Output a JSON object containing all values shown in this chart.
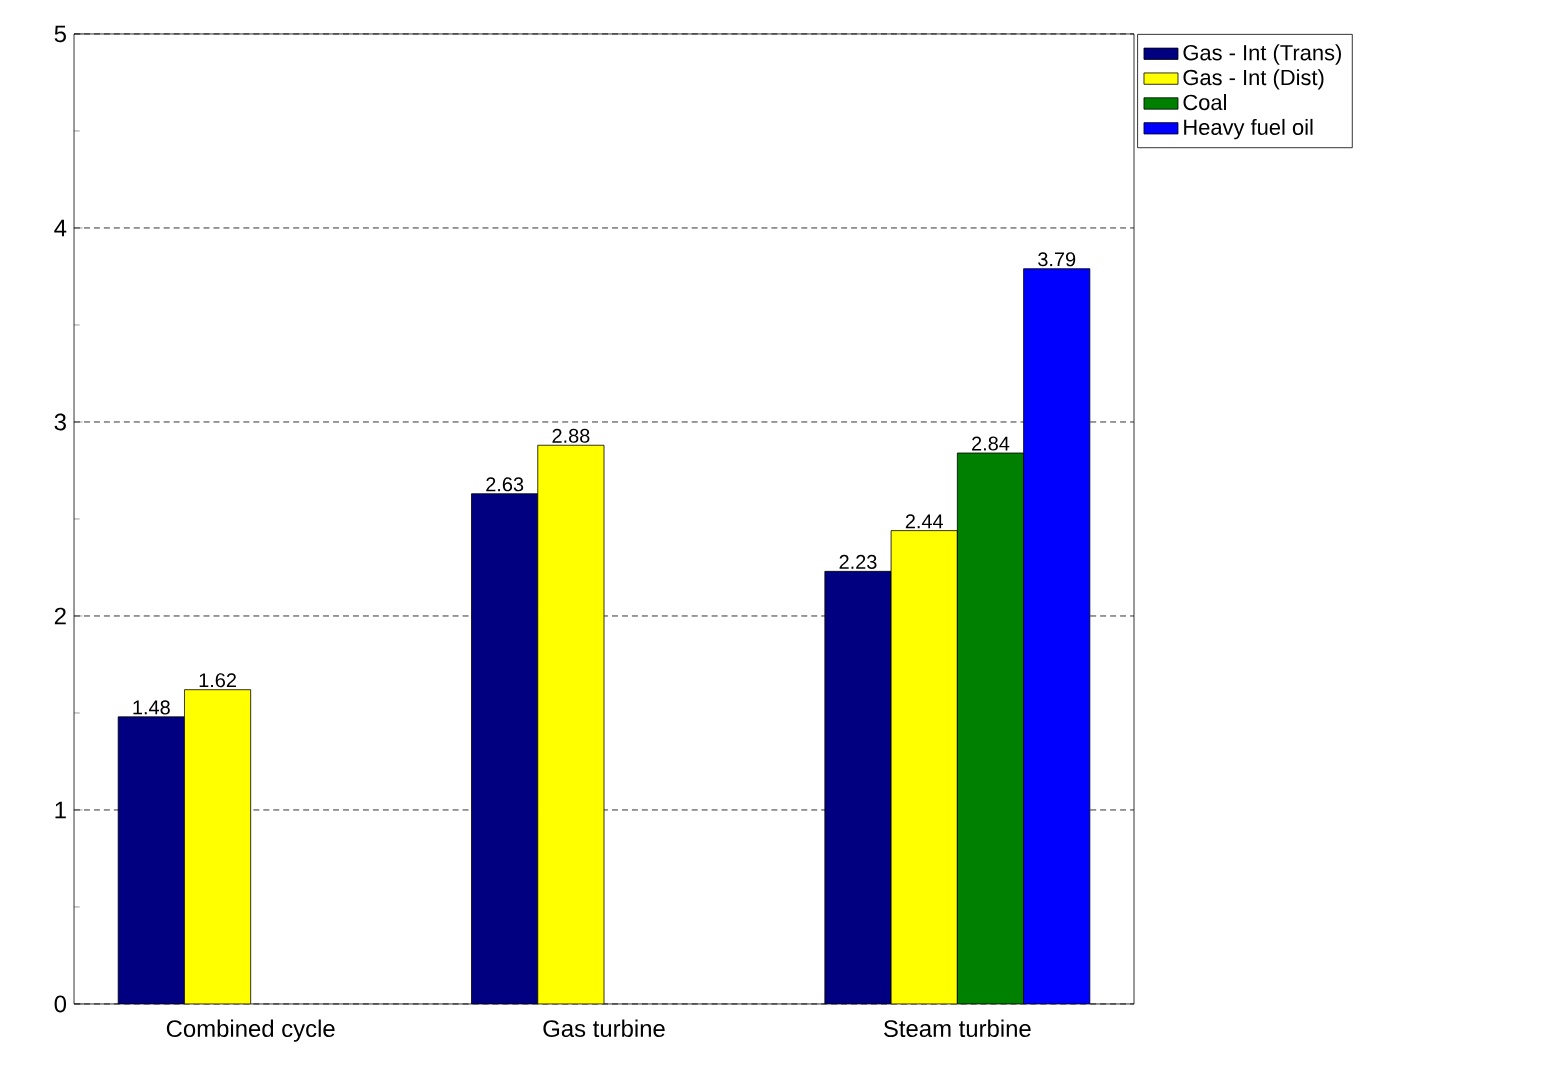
{
  "chart_data": {
    "type": "bar",
    "categories": [
      "Combined cycle",
      "Gas turbine",
      "Steam turbine"
    ],
    "series": [
      {
        "name": "Gas - Int (Trans)",
        "color": "#000080",
        "values": [
          1.48,
          2.63,
          2.23
        ]
      },
      {
        "name": "Gas - Int (Dist)",
        "color": "#ffff00",
        "values": [
          1.62,
          2.88,
          2.44
        ]
      },
      {
        "name": "Coal",
        "color": "#008000",
        "values": [
          null,
          null,
          2.84
        ]
      },
      {
        "name": "Heavy fuel oil",
        "color": "#0000ff",
        "values": [
          null,
          null,
          3.79
        ]
      }
    ],
    "ylim": [
      0,
      5
    ],
    "yticks": [
      0,
      1,
      2,
      3,
      4,
      5
    ],
    "grid": "y",
    "legend": "top right",
    "data_labels": true
  }
}
